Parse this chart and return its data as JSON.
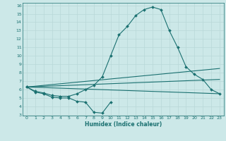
{
  "title": "",
  "xlabel": "Humidex (Indice chaleur)",
  "ylabel": "",
  "bg_color": "#cce8e8",
  "grid_color": "#b8d8d8",
  "line_color": "#1a7070",
  "xmin": -0.5,
  "xmax": 23.5,
  "ymin": 3,
  "ymax": 16,
  "x_ticks": [
    0,
    1,
    2,
    3,
    4,
    5,
    6,
    7,
    8,
    9,
    10,
    11,
    12,
    13,
    14,
    15,
    16,
    17,
    18,
    19,
    20,
    21,
    22,
    23
  ],
  "y_ticks": [
    3,
    4,
    5,
    6,
    7,
    8,
    9,
    10,
    11,
    12,
    13,
    14,
    15,
    16
  ],
  "series": [
    {
      "x": [
        0,
        1,
        2,
        3,
        4,
        5,
        6,
        7,
        8,
        9,
        10
      ],
      "y": [
        6.3,
        5.7,
        5.5,
        5.1,
        5.0,
        5.0,
        4.6,
        4.5,
        3.3,
        3.2,
        4.5
      ],
      "marker": "D",
      "markersize": 2,
      "linewidth": 0.8
    },
    {
      "x": [
        0,
        1,
        2,
        3,
        4,
        5,
        6,
        7,
        8,
        9,
        10,
        11,
        12,
        13,
        14,
        15,
        16,
        17,
        18,
        19,
        20,
        21,
        22,
        23
      ],
      "y": [
        6.3,
        5.8,
        5.6,
        5.3,
        5.2,
        5.2,
        5.5,
        6.0,
        6.5,
        7.5,
        10.0,
        12.5,
        13.5,
        14.8,
        15.5,
        15.8,
        15.5,
        13.0,
        11.0,
        8.7,
        7.8,
        7.2,
        6.0,
        5.5
      ],
      "marker": "D",
      "markersize": 2,
      "linewidth": 0.8
    },
    {
      "x": [
        0,
        23
      ],
      "y": [
        6.3,
        5.5
      ],
      "marker": null,
      "markersize": 0,
      "linewidth": 0.8
    },
    {
      "x": [
        0,
        23
      ],
      "y": [
        6.3,
        7.2
      ],
      "marker": null,
      "markersize": 0,
      "linewidth": 0.8
    },
    {
      "x": [
        0,
        23
      ],
      "y": [
        6.3,
        8.5
      ],
      "marker": null,
      "markersize": 0,
      "linewidth": 0.8
    }
  ]
}
